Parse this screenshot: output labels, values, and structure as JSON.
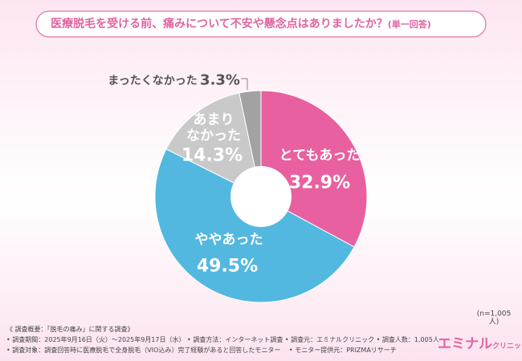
{
  "chart_data": {
    "type": "pie",
    "title": "医療脱毛を受ける前、痛みについて不安や懸念点はありましたか？",
    "subtitle": "(単一回答)",
    "categories": [
      "とてもあった",
      "ややあった",
      "あまり\nなかった",
      "まったくなかった"
    ],
    "values": [
      32.9,
      49.5,
      14.3,
      3.3
    ],
    "value_labels": [
      "32.9%",
      "49.5%",
      "14.3%",
      "3.3%"
    ],
    "colors": [
      "#e8609f",
      "#52b8e0",
      "#c9c9c9",
      "#a2a2a2"
    ],
    "note": "(n=1,005人)"
  },
  "footer": {
    "lines": [
      "《 調査概要：「脱毛の痛み」に関する調査》",
      "• 調査期間：2025年9月16日（火）～2025年9月17日（水） • 調査方法：インターネット調査 • 調査元：エミナルクリニック • 調査人数：1,005人",
      "• 調査対象：調査回答時に医療脱毛で全身脱毛（VIO込み）完了経験があると回答したモニター　 • モニター提供元：PRIZMAリサーチ"
    ],
    "brand": "エミナル",
    "brand_sub": "クリニック"
  }
}
